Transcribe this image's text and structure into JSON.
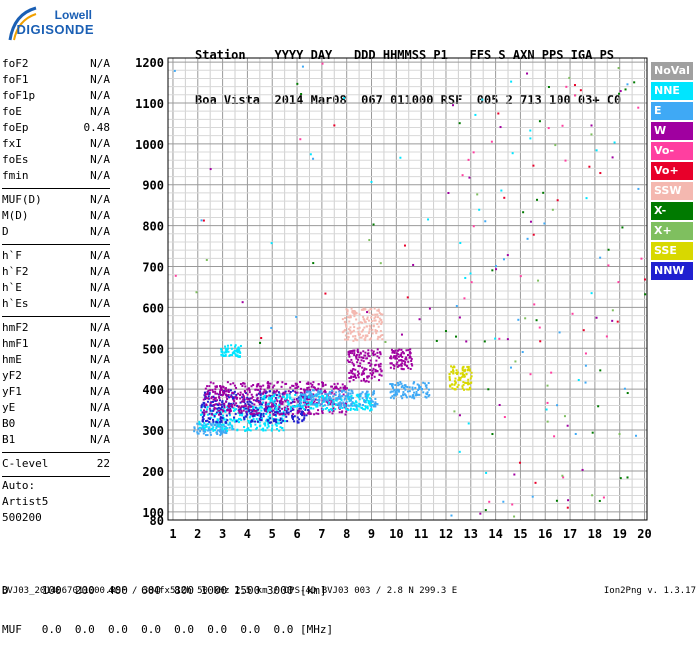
{
  "header": {
    "labels": "Station    YYYY DAY   DDD HHMMSS P1   FFS S AXN PPS IGA PS",
    "values": "Boa Vista  2014 Mar08  067 011000 RSF  005 2 713 100 03+ C0"
  },
  "logo": {
    "brand": "Lowell",
    "product": "DIGISONDE"
  },
  "params_group1": [
    {
      "label": "foF2",
      "value": "N/A"
    },
    {
      "label": "foF1",
      "value": "N/A"
    },
    {
      "label": "foF1p",
      "value": "N/A"
    },
    {
      "label": "foE",
      "value": "N/A"
    },
    {
      "label": "foEp",
      "value": "0.48"
    },
    {
      "label": "fxI",
      "value": "N/A"
    },
    {
      "label": "foEs",
      "value": "N/A"
    },
    {
      "label": "fmin",
      "value": "N/A"
    }
  ],
  "params_group2": [
    {
      "label": "MUF(D)",
      "value": "N/A"
    },
    {
      "label": "M(D)",
      "value": "N/A"
    },
    {
      "label": "D",
      "value": "N/A"
    }
  ],
  "params_group3": [
    {
      "label": "h`F",
      "value": "N/A"
    },
    {
      "label": "h`F2",
      "value": "N/A"
    },
    {
      "label": "h`E",
      "value": "N/A"
    },
    {
      "label": "h`Es",
      "value": "N/A"
    }
  ],
  "params_group4": [
    {
      "label": "hmF2",
      "value": "N/A"
    },
    {
      "label": "hmF1",
      "value": "N/A"
    },
    {
      "label": "hmE",
      "value": "N/A"
    },
    {
      "label": "yF2",
      "value": "N/A"
    },
    {
      "label": "yF1",
      "value": "N/A"
    },
    {
      "label": "yE",
      "value": "N/A"
    },
    {
      "label": "B0",
      "value": "N/A"
    },
    {
      "label": "B1",
      "value": "N/A"
    }
  ],
  "params_group5": [
    {
      "label": "C-level",
      "value": "22"
    }
  ],
  "auto": {
    "line1": "Auto:",
    "line2": "Artist5",
    "line3": "500200"
  },
  "mufTable": {
    "dRow": "D     100  200  400  600  800 1000 1500 3000 [km]",
    "mufRow": "MUF   0.0  0.0  0.0  0.0  0.0  0.0  0.0  0.0 [MHz]"
  },
  "footer": {
    "left": "BVJ03_2014067011000.RSF / 384fx512h 50 kHz 2.5 km / DPS-4D BVJ03 003 / 2.8 N 299.3 E",
    "right": "Ion2Png v. 1.3.17"
  },
  "legend": [
    {
      "label": "NoVal",
      "color": "#a0a0a0"
    },
    {
      "label": "NNE",
      "color": "#00e5ff"
    },
    {
      "label": "E",
      "color": "#3fa9f5"
    },
    {
      "label": "W",
      "color": "#a000a0"
    },
    {
      "label": "Vo-",
      "color": "#ff3fa0"
    },
    {
      "label": "Vo+",
      "color": "#e8002a"
    },
    {
      "label": "SSW",
      "color": "#f4b8b0"
    },
    {
      "label": "X-",
      "color": "#007a00"
    },
    {
      "label": "X+",
      "color": "#7fbf5f"
    },
    {
      "label": "SSE",
      "color": "#d8d800"
    },
    {
      "label": "NNW",
      "color": "#2020d0"
    }
  ],
  "chart_data": {
    "type": "scatter",
    "xlabel": "",
    "ylabel": "",
    "xlim": [
      0.8,
      20.1
    ],
    "ylim": [
      80,
      1210
    ],
    "xticks": [
      1,
      2,
      3,
      4,
      5,
      6,
      7,
      8,
      9,
      10,
      11,
      12,
      13,
      14,
      15,
      16,
      17,
      18,
      19,
      20
    ],
    "yticks": [
      80,
      100,
      200,
      300,
      400,
      500,
      600,
      700,
      800,
      900,
      1000,
      1100,
      1200
    ],
    "grid": true,
    "legend_position": "right",
    "clusters": [
      {
        "series": "E",
        "x": [
          1.8,
          3.4
        ],
        "y": [
          290,
          320
        ]
      },
      {
        "series": "NNE",
        "x": [
          2.0,
          5.5
        ],
        "y": [
          300,
          360
        ]
      },
      {
        "series": "NNW",
        "x": [
          2.1,
          6.5
        ],
        "y": [
          320,
          400
        ]
      },
      {
        "series": "W",
        "x": [
          2.2,
          8.0
        ],
        "y": [
          340,
          420
        ]
      },
      {
        "series": "NNE",
        "x": [
          4.5,
          9.0
        ],
        "y": [
          350,
          390
        ]
      },
      {
        "series": "E",
        "x": [
          6.0,
          9.2
        ],
        "y": [
          360,
          400
        ]
      },
      {
        "series": "W",
        "x": [
          8.0,
          9.4
        ],
        "y": [
          420,
          500
        ]
      },
      {
        "series": "SSW",
        "x": [
          7.8,
          9.4
        ],
        "y": [
          520,
          600
        ]
      },
      {
        "series": "W",
        "x": [
          9.7,
          10.6
        ],
        "y": [
          450,
          500
        ]
      },
      {
        "series": "E",
        "x": [
          9.7,
          11.3
        ],
        "y": [
          380,
          420
        ]
      },
      {
        "series": "SSE",
        "x": [
          12.1,
          13.0
        ],
        "y": [
          400,
          460
        ]
      },
      {
        "series": "NNE",
        "x": [
          2.9,
          3.7
        ],
        "y": [
          480,
          510
        ]
      }
    ]
  }
}
